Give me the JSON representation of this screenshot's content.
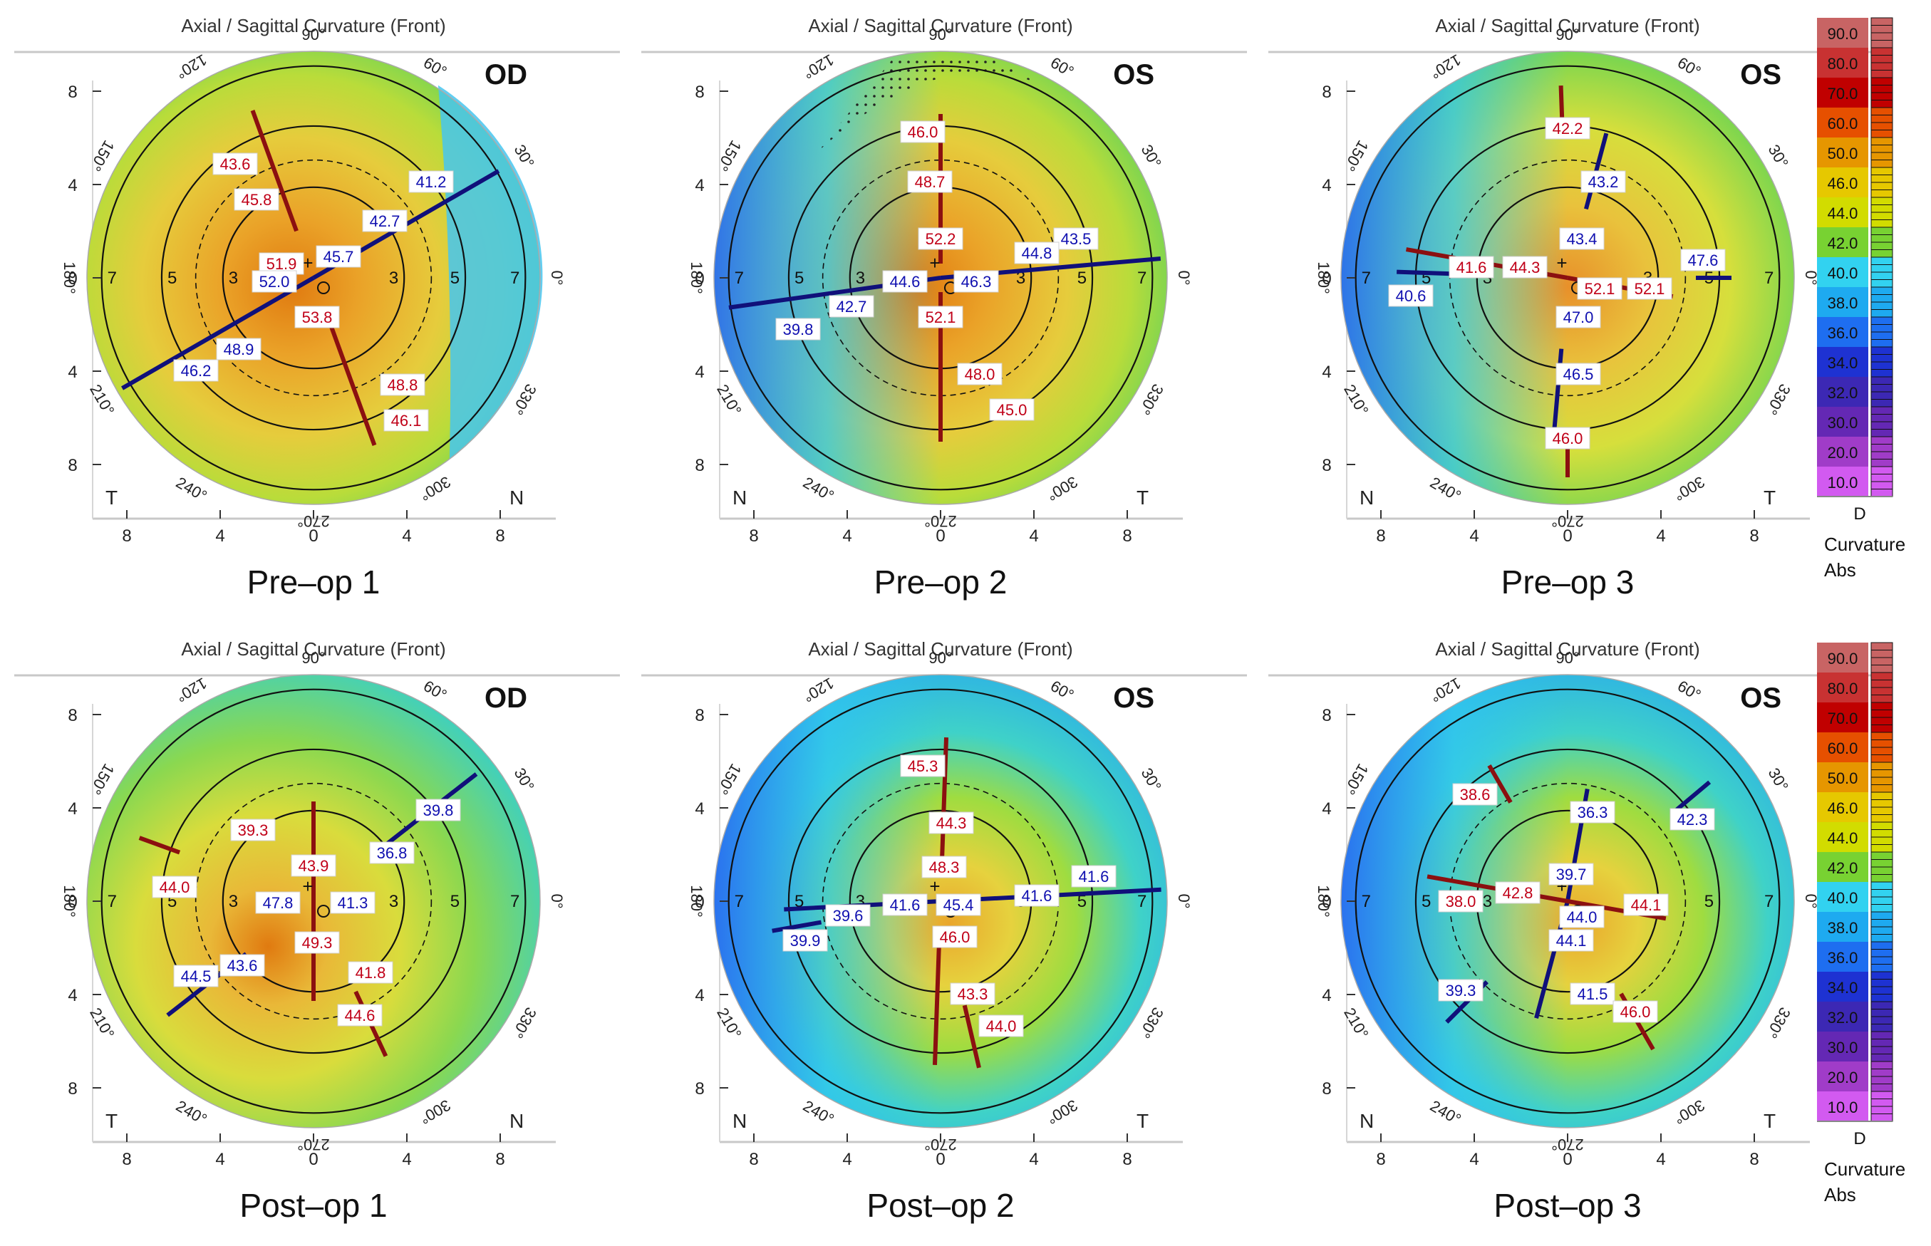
{
  "header_title": "Axial / Sagittal Curvature (Front)",
  "angle_labels": [
    "90°",
    "60°",
    "30°",
    "0°",
    "330°",
    "300°",
    "270°",
    "240°",
    "210°",
    "180°",
    "150°",
    "120°"
  ],
  "axis_ticks": [
    "8",
    "4",
    "0",
    "4",
    "8"
  ],
  "ring_labels": [
    "3",
    "5",
    "7"
  ],
  "legend": {
    "values": [
      "90.0",
      "80.0",
      "70.0",
      "60.0",
      "50.0",
      "46.0",
      "44.0",
      "42.0",
      "40.0",
      "38.0",
      "36.0",
      "34.0",
      "32.0",
      "30.0",
      "20.0",
      "10.0"
    ],
    "colors": [
      "#c86464",
      "#c83232",
      "#c00000",
      "#e65000",
      "#e69600",
      "#e6c800",
      "#d2dc00",
      "#78d232",
      "#32d2f0",
      "#1eaaf0",
      "#1e6ef0",
      "#1e32d2",
      "#3c28b4",
      "#6428b4",
      "#a03cc8",
      "#d25af0"
    ],
    "unit": "D",
    "caption_line1": "Curvature",
    "caption_line2": "Abs"
  },
  "maps": [
    {
      "caption": "Pre–op 1",
      "eye": "OD",
      "side_left": "T",
      "side_right": "N",
      "values": [
        {
          "t": "43.6",
          "c": "r"
        },
        {
          "t": "45.8",
          "c": "r"
        },
        {
          "t": "41.2",
          "c": "b"
        },
        {
          "t": "42.7",
          "c": "b"
        },
        {
          "t": "45.7",
          "c": "b"
        },
        {
          "t": "51.9",
          "c": "r"
        },
        {
          "t": "52.0",
          "c": "b"
        },
        {
          "t": "53.8",
          "c": "r"
        },
        {
          "t": "48.9",
          "c": "b"
        },
        {
          "t": "46.2",
          "c": "b"
        },
        {
          "t": "48.8",
          "c": "r"
        },
        {
          "t": "46.1",
          "c": "r"
        }
      ]
    },
    {
      "caption": "Pre–op 2",
      "eye": "OS",
      "side_left": "N",
      "side_right": "T",
      "values": [
        {
          "t": "46.0",
          "c": "r"
        },
        {
          "t": "48.7",
          "c": "r"
        },
        {
          "t": "52.2",
          "c": "r"
        },
        {
          "t": "43.5",
          "c": "b"
        },
        {
          "t": "44.8",
          "c": "b"
        },
        {
          "t": "46.3",
          "c": "b"
        },
        {
          "t": "44.6",
          "c": "b"
        },
        {
          "t": "42.7",
          "c": "b"
        },
        {
          "t": "39.8",
          "c": "b"
        },
        {
          "t": "52.1",
          "c": "r"
        },
        {
          "t": "48.0",
          "c": "r"
        },
        {
          "t": "45.0",
          "c": "r"
        }
      ]
    },
    {
      "caption": "Pre–op 3",
      "eye": "OS",
      "side_left": "N",
      "side_right": "T",
      "values": [
        {
          "t": "42.2",
          "c": "r"
        },
        {
          "t": "43.2",
          "c": "b"
        },
        {
          "t": "43.4",
          "c": "b"
        },
        {
          "t": "47.6",
          "c": "b"
        },
        {
          "t": "41.6",
          "c": "r"
        },
        {
          "t": "44.3",
          "c": "r"
        },
        {
          "t": "52.1",
          "c": "r"
        },
        {
          "t": "52.1",
          "c": "r"
        },
        {
          "t": "40.6",
          "c": "b"
        },
        {
          "t": "47.0",
          "c": "b"
        },
        {
          "t": "46.5",
          "c": "b"
        },
        {
          "t": "46.0",
          "c": "r"
        }
      ]
    },
    {
      "caption": "Post–op 1",
      "eye": "OD",
      "side_left": "T",
      "side_right": "N",
      "values": [
        {
          "t": "39.8",
          "c": "b"
        },
        {
          "t": "39.3",
          "c": "r"
        },
        {
          "t": "36.8",
          "c": "b"
        },
        {
          "t": "43.9",
          "c": "r"
        },
        {
          "t": "44.0",
          "c": "r"
        },
        {
          "t": "47.8",
          "c": "b"
        },
        {
          "t": "41.3",
          "c": "b"
        },
        {
          "t": "49.3",
          "c": "r"
        },
        {
          "t": "43.6",
          "c": "b"
        },
        {
          "t": "44.5",
          "c": "b"
        },
        {
          "t": "41.8",
          "c": "r"
        },
        {
          "t": "44.6",
          "c": "r"
        }
      ]
    },
    {
      "caption": "Post–op 2",
      "eye": "OS",
      "side_left": "N",
      "side_right": "T",
      "values": [
        {
          "t": "45.3",
          "c": "r"
        },
        {
          "t": "44.3",
          "c": "r"
        },
        {
          "t": "48.3",
          "c": "r"
        },
        {
          "t": "41.6",
          "c": "b"
        },
        {
          "t": "41.6",
          "c": "b"
        },
        {
          "t": "45.4",
          "c": "b"
        },
        {
          "t": "41.6",
          "c": "b"
        },
        {
          "t": "39.6",
          "c": "b"
        },
        {
          "t": "39.9",
          "c": "b"
        },
        {
          "t": "46.0",
          "c": "r"
        },
        {
          "t": "43.3",
          "c": "r"
        },
        {
          "t": "44.0",
          "c": "r"
        }
      ]
    },
    {
      "caption": "Post–op 3",
      "eye": "OS",
      "side_left": "N",
      "side_right": "T",
      "values": [
        {
          "t": "38.6",
          "c": "r"
        },
        {
          "t": "36.3",
          "c": "b"
        },
        {
          "t": "42.3",
          "c": "b"
        },
        {
          "t": "39.7",
          "c": "b"
        },
        {
          "t": "38.0",
          "c": "r"
        },
        {
          "t": "42.8",
          "c": "r"
        },
        {
          "t": "44.0",
          "c": "b"
        },
        {
          "t": "44.1",
          "c": "r"
        },
        {
          "t": "44.1",
          "c": "b"
        },
        {
          "t": "39.3",
          "c": "b"
        },
        {
          "t": "41.5",
          "c": "b"
        },
        {
          "t": "46.0",
          "c": "r"
        }
      ]
    }
  ]
}
